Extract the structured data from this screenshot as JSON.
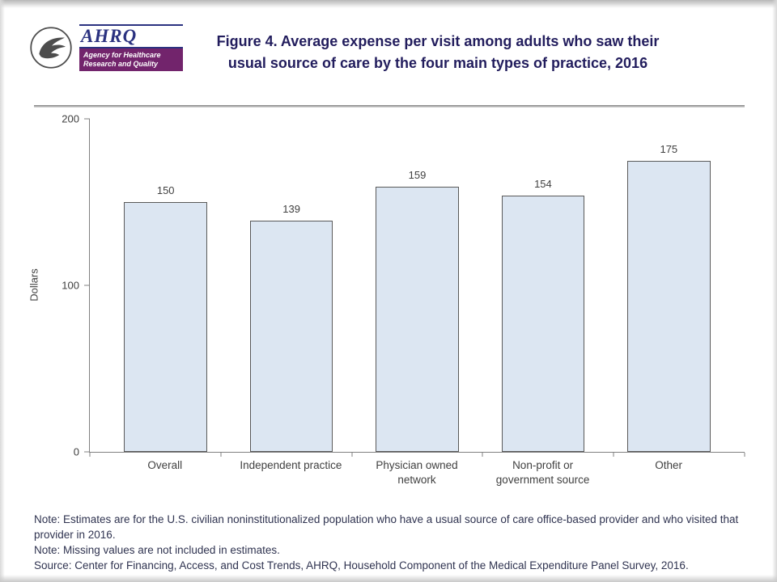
{
  "header": {
    "title_line1": "Figure 4. Average expense per visit among adults who saw their",
    "title_line2": "usual source of care by the four main types of practice, 2016",
    "logo": {
      "hhs_icon": "hhs-eagle-logo",
      "ahrq_acronym": "AHRQ",
      "ahrq_tagline_line1": "Agency for Healthcare",
      "ahrq_tagline_line2": "Research and Quality"
    }
  },
  "chart_data": {
    "type": "bar",
    "title": "Figure 4. Average expense per visit among adults who saw their usual source of care by the four main types of practice, 2016",
    "categories": [
      "Overall",
      "Independent practice",
      "Physician owned\nnetwork",
      "Non-profit or\ngovernment source",
      "Other"
    ],
    "values": [
      150,
      139,
      159,
      154,
      175
    ],
    "xlabel": "",
    "ylabel": "Dollars",
    "ylim": [
      0,
      200
    ],
    "yticks": [
      0,
      100,
      200
    ],
    "grid": false,
    "legend": false,
    "bar_value_labels_shown": true
  },
  "notes": {
    "lines": [
      "Note: Estimates are for the U.S. civilian noninstitutionalized population who have a usual source of care office-based provider and who visited that provider in 2016.",
      "Note: Missing values are not included in estimates.",
      "Source: Center for Financing, Access, and Cost Trends, AHRQ, Household Component of the Medical Expenditure Panel Survey, 2016."
    ]
  },
  "theme": {
    "title_color": "#221d5d",
    "bar_fill": "#dce6f2",
    "bar_border": "#595959",
    "axis_color": "#808080",
    "label_color": "#404040",
    "note_color": "#2f3350",
    "ahrq_purple": "#72246c",
    "ahrq_blue": "#2b3280"
  }
}
